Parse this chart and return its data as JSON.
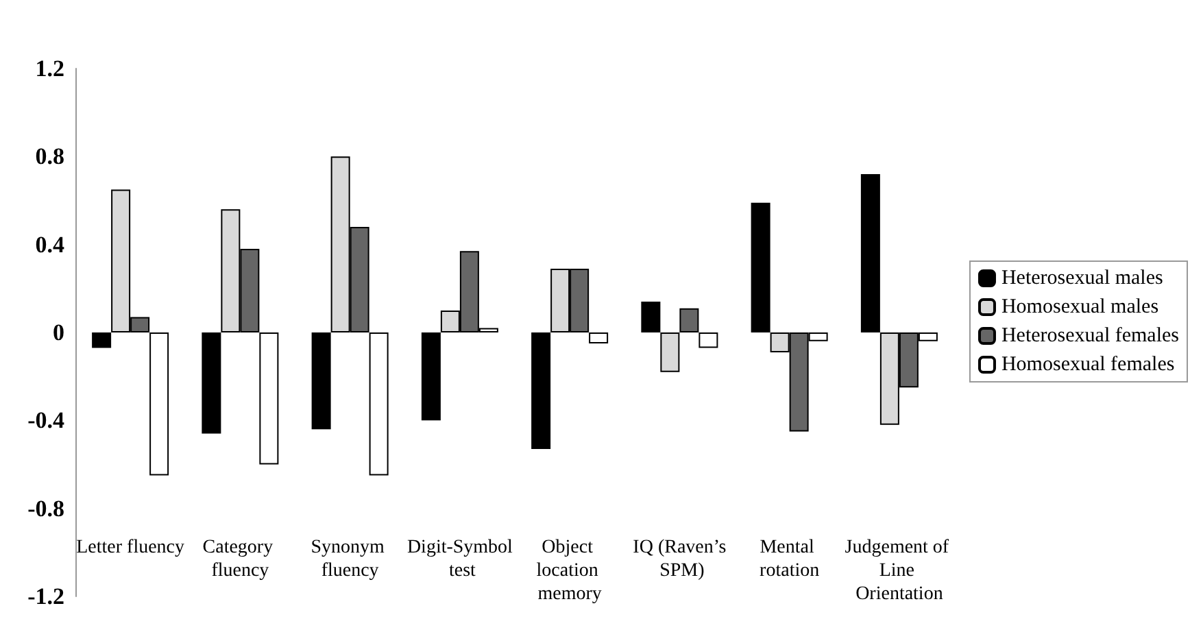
{
  "chart_data": {
    "type": "bar",
    "categories": [
      "Letter fluency",
      "Category fluency",
      "Synonym fluency",
      "Digit-Symbol test",
      "Object location memory",
      "IQ (Raven’s SPM)",
      "Mental rotation",
      "Judgement of Line Orientation"
    ],
    "series": [
      {
        "name": "Heterosexual males",
        "color": "#000000",
        "values": [
          -0.07,
          -0.46,
          -0.44,
          -0.4,
          -0.53,
          0.14,
          0.59,
          0.72
        ]
      },
      {
        "name": "Homosexual males",
        "color": "#d9d9d9",
        "values": [
          0.65,
          0.56,
          0.8,
          0.1,
          0.29,
          -0.18,
          -0.09,
          -0.42
        ]
      },
      {
        "name": "Heterosexual females",
        "color": "#666666",
        "values": [
          0.07,
          0.38,
          0.48,
          0.37,
          0.29,
          0.11,
          -0.45,
          -0.25
        ]
      },
      {
        "name": "Homosexual females",
        "color": "#ffffff",
        "values": [
          -0.65,
          -0.6,
          -0.65,
          0.02,
          -0.05,
          -0.07,
          -0.04,
          -0.04
        ]
      }
    ],
    "ylim": [
      -1.2,
      1.2
    ],
    "yticks": [
      -1.2,
      -0.8,
      -0.4,
      0,
      0.4,
      0.8,
      1.2
    ],
    "grid": false,
    "legend": "right"
  }
}
